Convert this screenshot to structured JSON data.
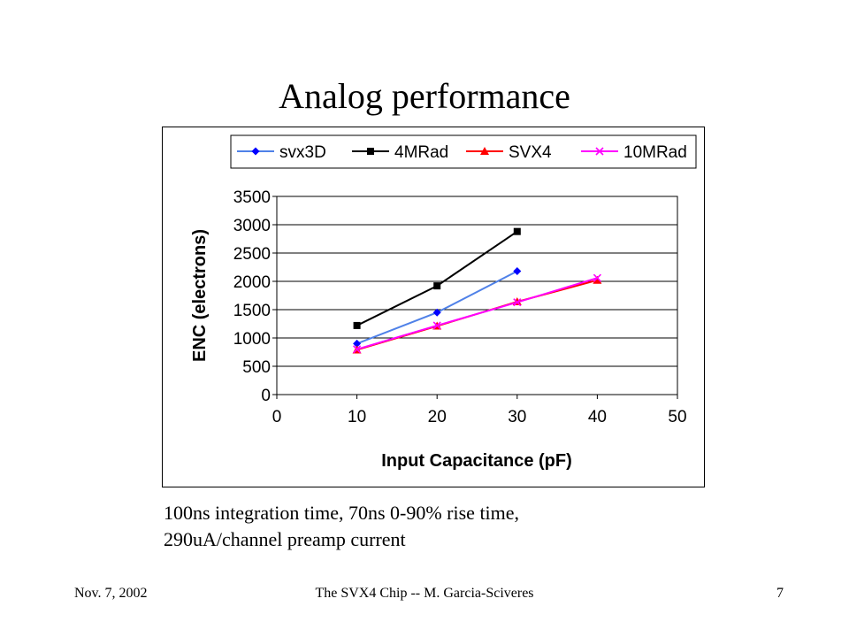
{
  "slide": {
    "title": "Analog performance",
    "caption_line1": "100ns integration time, 70ns 0-90% rise time,",
    "caption_line2": "290uA/channel preamp current"
  },
  "footer": {
    "date": "Nov. 7, 2002",
    "center": "The SVX4 Chip -- M. Garcia-Sciveres",
    "page": "7"
  },
  "chart_data": {
    "type": "line",
    "title": "",
    "xlabel": "Input Capacitance (pF)",
    "ylabel": "ENC (electrons)",
    "xlim": [
      0,
      50
    ],
    "ylim": [
      0,
      3500
    ],
    "xticks": [
      0,
      10,
      20,
      30,
      40,
      50
    ],
    "yticks": [
      0,
      500,
      1000,
      1500,
      2000,
      2500,
      3000,
      3500
    ],
    "grid": "horizontal",
    "legend_position": "top",
    "series": [
      {
        "name": "svx3D",
        "marker": "diamond",
        "color": "#0000ff",
        "line_color": "#4f81e8",
        "points": [
          [
            10,
            900
          ],
          [
            20,
            1450
          ],
          [
            30,
            2180
          ]
        ]
      },
      {
        "name": "4MRad",
        "marker": "square",
        "color": "#000000",
        "line_color": "#000000",
        "points": [
          [
            10,
            1220
          ],
          [
            20,
            1920
          ],
          [
            30,
            2880
          ]
        ]
      },
      {
        "name": "SVX4",
        "marker": "triangle",
        "color": "#ff0000",
        "line_color": "#ff0000",
        "points": [
          [
            10,
            790
          ],
          [
            20,
            1210
          ],
          [
            30,
            1640
          ],
          [
            40,
            2020
          ]
        ]
      },
      {
        "name": "10MRad",
        "marker": "x",
        "color": "#ff00ff",
        "line_color": "#ff00ff",
        "points": [
          [
            10,
            800
          ],
          [
            20,
            1220
          ],
          [
            30,
            1630
          ],
          [
            40,
            2060
          ]
        ]
      }
    ]
  }
}
